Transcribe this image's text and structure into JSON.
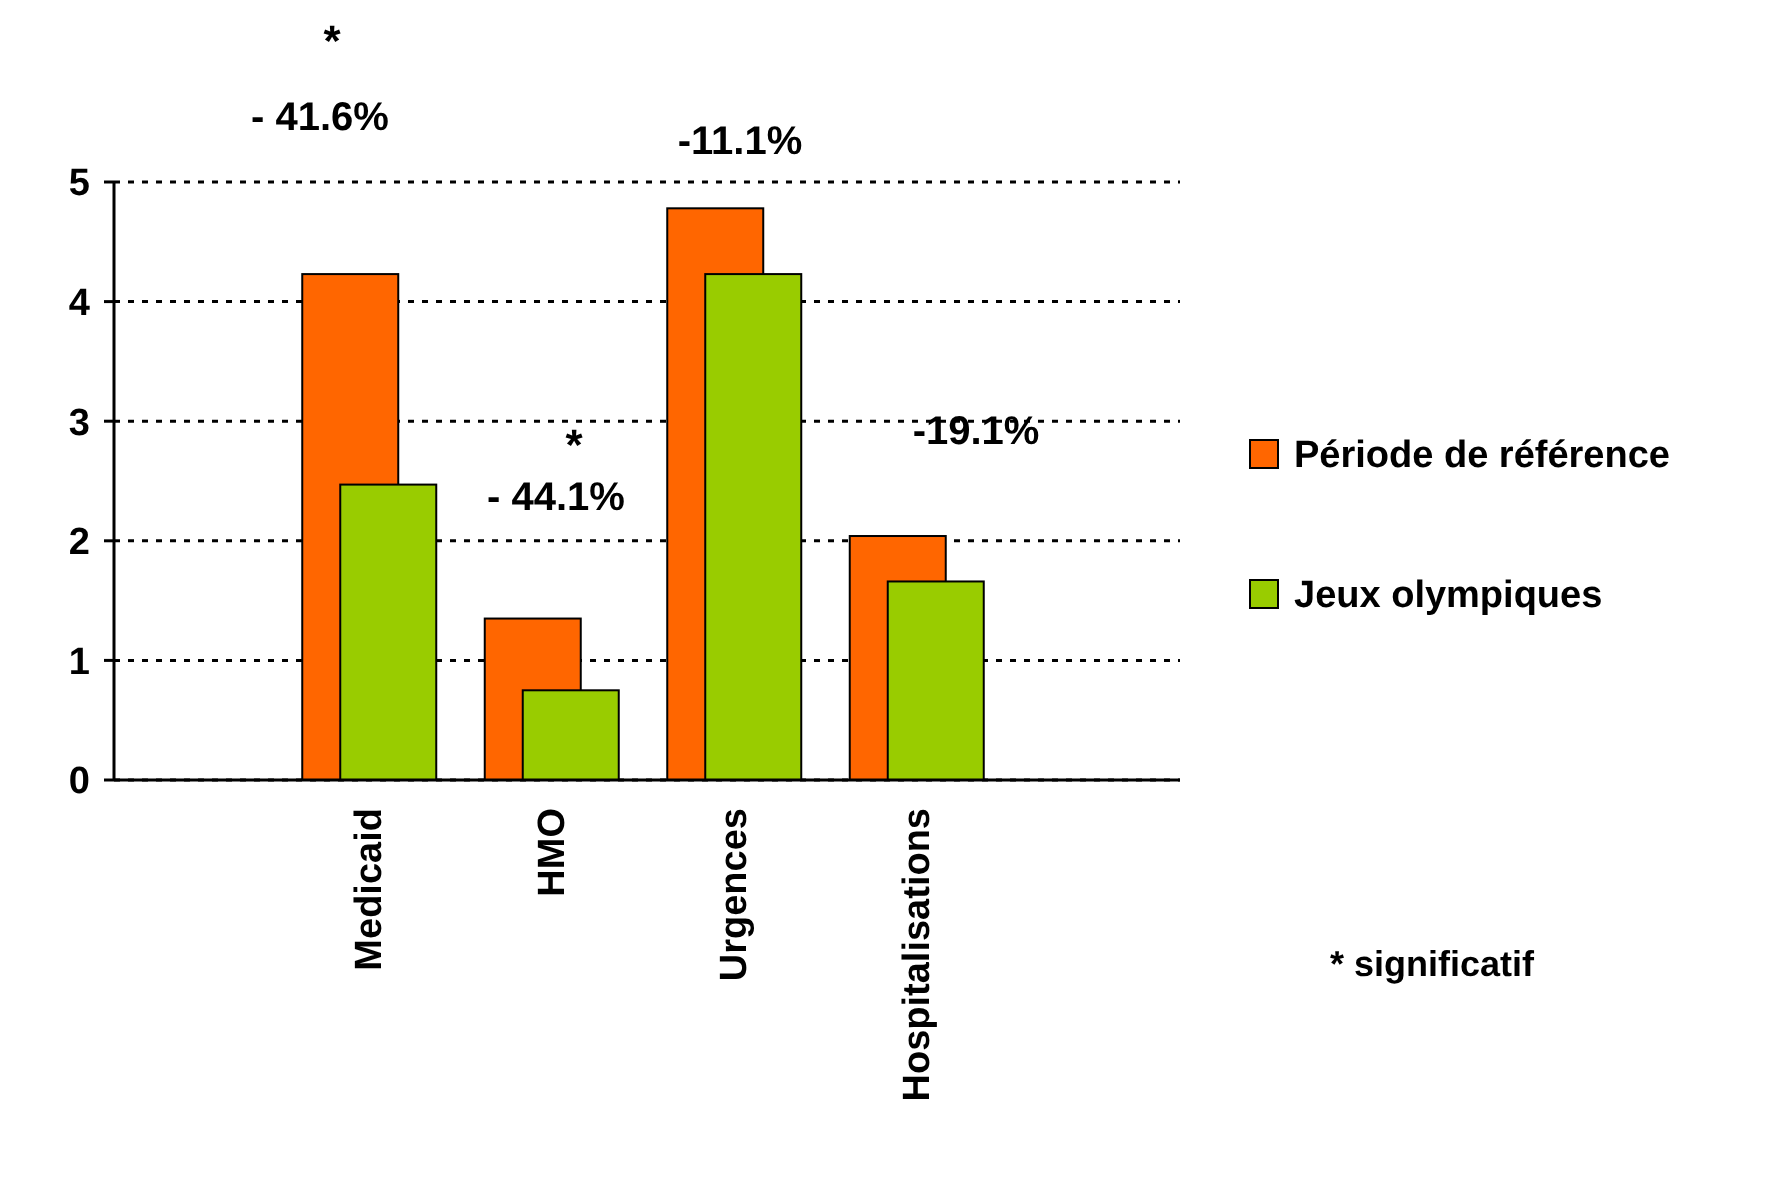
{
  "chart_data": {
    "type": "bar",
    "categories": [
      "Medicaid",
      "HMO",
      "Urgences",
      "Hospitalisations"
    ],
    "series": [
      {
        "name": "Période de référence",
        "color": "#ff6600",
        "values": [
          4.23,
          1.35,
          4.78,
          2.04
        ]
      },
      {
        "name": "Jeux olympiques",
        "color": "#99cc00",
        "values": [
          2.47,
          0.75,
          4.23,
          1.66
        ]
      }
    ],
    "ylim": [
      0,
      5
    ],
    "yticks": [
      0,
      1,
      2,
      3,
      4,
      5
    ],
    "grid": "y",
    "legend": "right",
    "annotations": [
      "*",
      "- 41.6%",
      "-11.1%",
      "*",
      "- 44.1%",
      "-19.1%",
      "* significatif"
    ]
  }
}
